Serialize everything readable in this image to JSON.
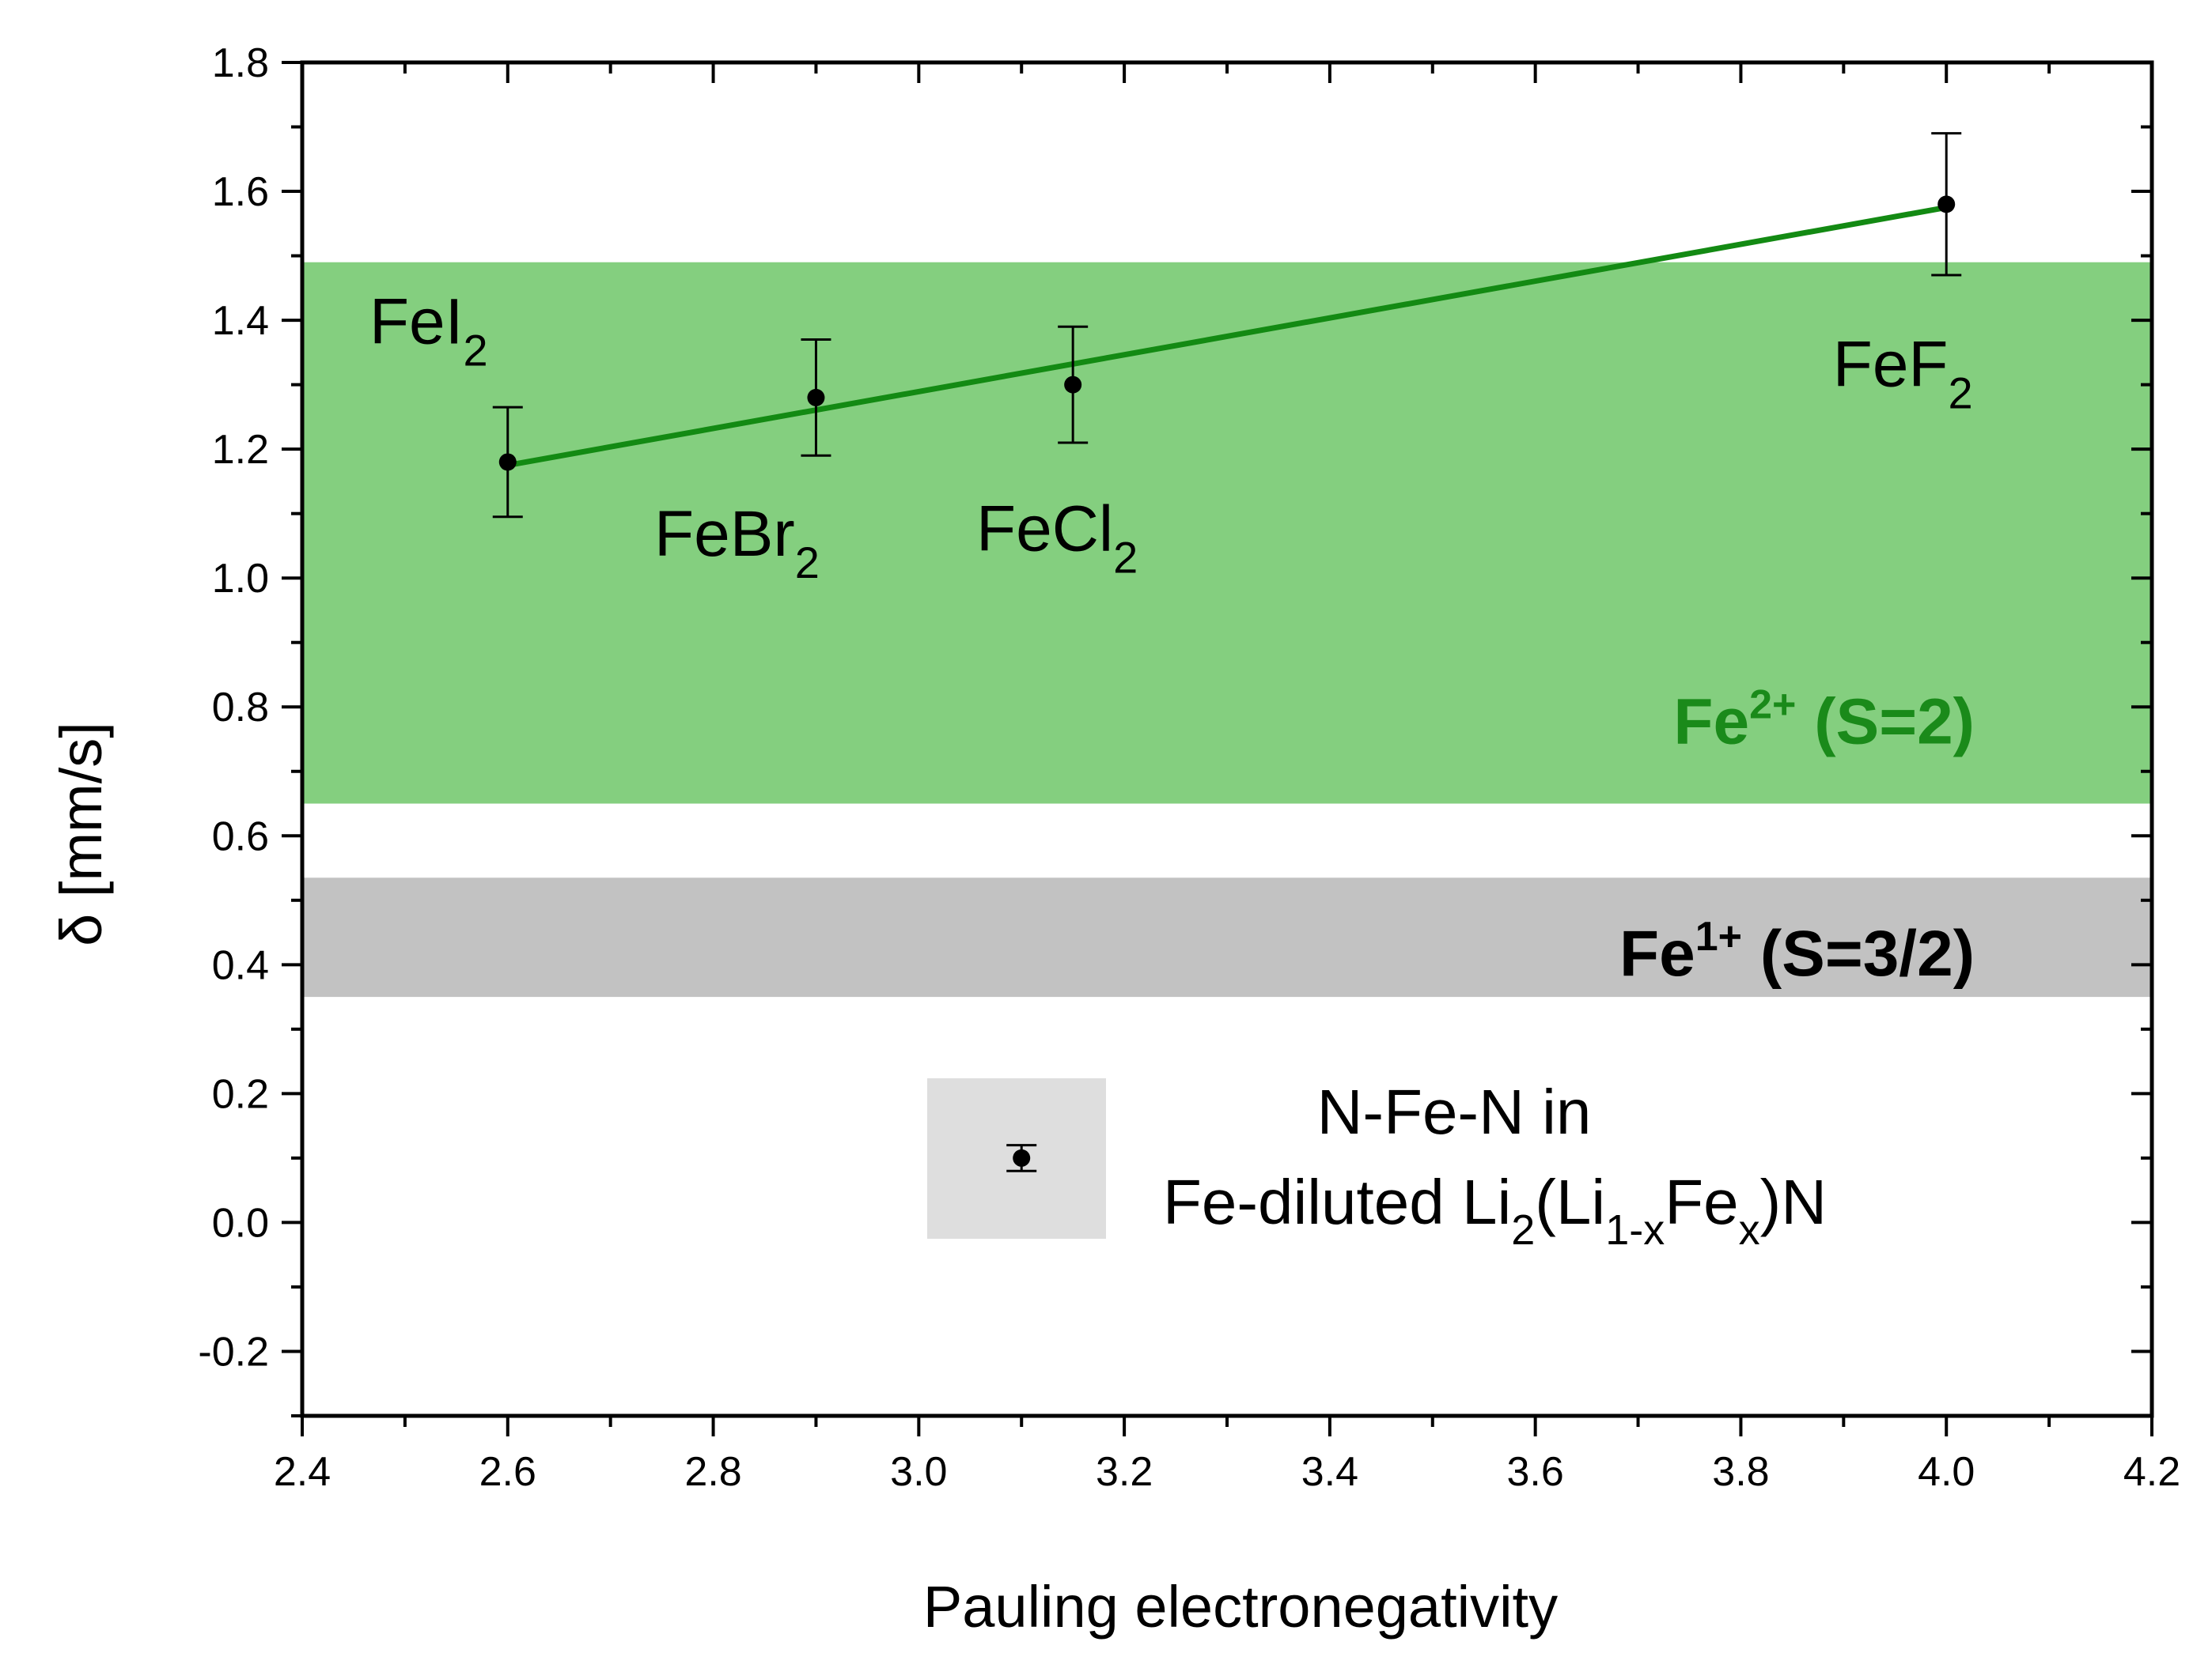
{
  "chart_data": {
    "type": "scatter",
    "xlabel": "Pauling electronegativity",
    "ylabel": "δ [mm/s]",
    "xlim": [
      2.4,
      4.2
    ],
    "ylim": [
      -0.3,
      1.8
    ],
    "xticks": [
      "2.4",
      "2.6",
      "2.8",
      "3.0",
      "3.2",
      "3.4",
      "3.6",
      "3.8",
      "4.0",
      "4.2"
    ],
    "yticks": [
      "-0.2",
      "0.0",
      "0.2",
      "0.4",
      "0.6",
      "0.8",
      "1.0",
      "1.2",
      "1.4",
      "1.6",
      "1.8"
    ],
    "series": [
      {
        "points": [
          {
            "x": 2.6,
            "y": 1.18,
            "err": 0.085,
            "label": "FeI",
            "sub": "2"
          },
          {
            "x": 2.9,
            "y": 1.28,
            "err": 0.09,
            "label": "FeBr",
            "sub": "2"
          },
          {
            "x": 3.15,
            "y": 1.3,
            "err": 0.09,
            "label": "FeCl",
            "sub": "2"
          },
          {
            "x": 4.0,
            "y": 1.58,
            "err": 0.11,
            "label": "FeF",
            "sub": "2"
          }
        ],
        "marker_color": "#000000"
      }
    ],
    "fit_line": {
      "x": [
        2.6,
        4.0
      ],
      "y": [
        1.175,
        1.575
      ],
      "color": "#138a13"
    },
    "bands": [
      {
        "label_main": "Fe",
        "label_sup": "2+",
        "label_rest": " (S=2)",
        "y_range": [
          0.65,
          1.49
        ],
        "fill": "#84cf7f",
        "text_color": "#1a8a1a"
      },
      {
        "label_main": "Fe",
        "label_sup": "1+",
        "label_rest": " (S=3/2)",
        "y_range": [
          0.35,
          0.535
        ],
        "fill": "#c2c2c2",
        "text_color": "#000000"
      }
    ],
    "legend": {
      "line1": "N-Fe-N in",
      "line2_a": "Fe-diluted Li",
      "line2_sub1": "2",
      "line2_b": "(Li",
      "line2_sub2": "1-x",
      "line2_c": "Fe",
      "line2_sub3": "x",
      "line2_d": ")N",
      "point": {
        "x": 3.1,
        "y": 0.1,
        "err": 0.02
      },
      "box_fill": "#dedede"
    },
    "grid": false
  }
}
